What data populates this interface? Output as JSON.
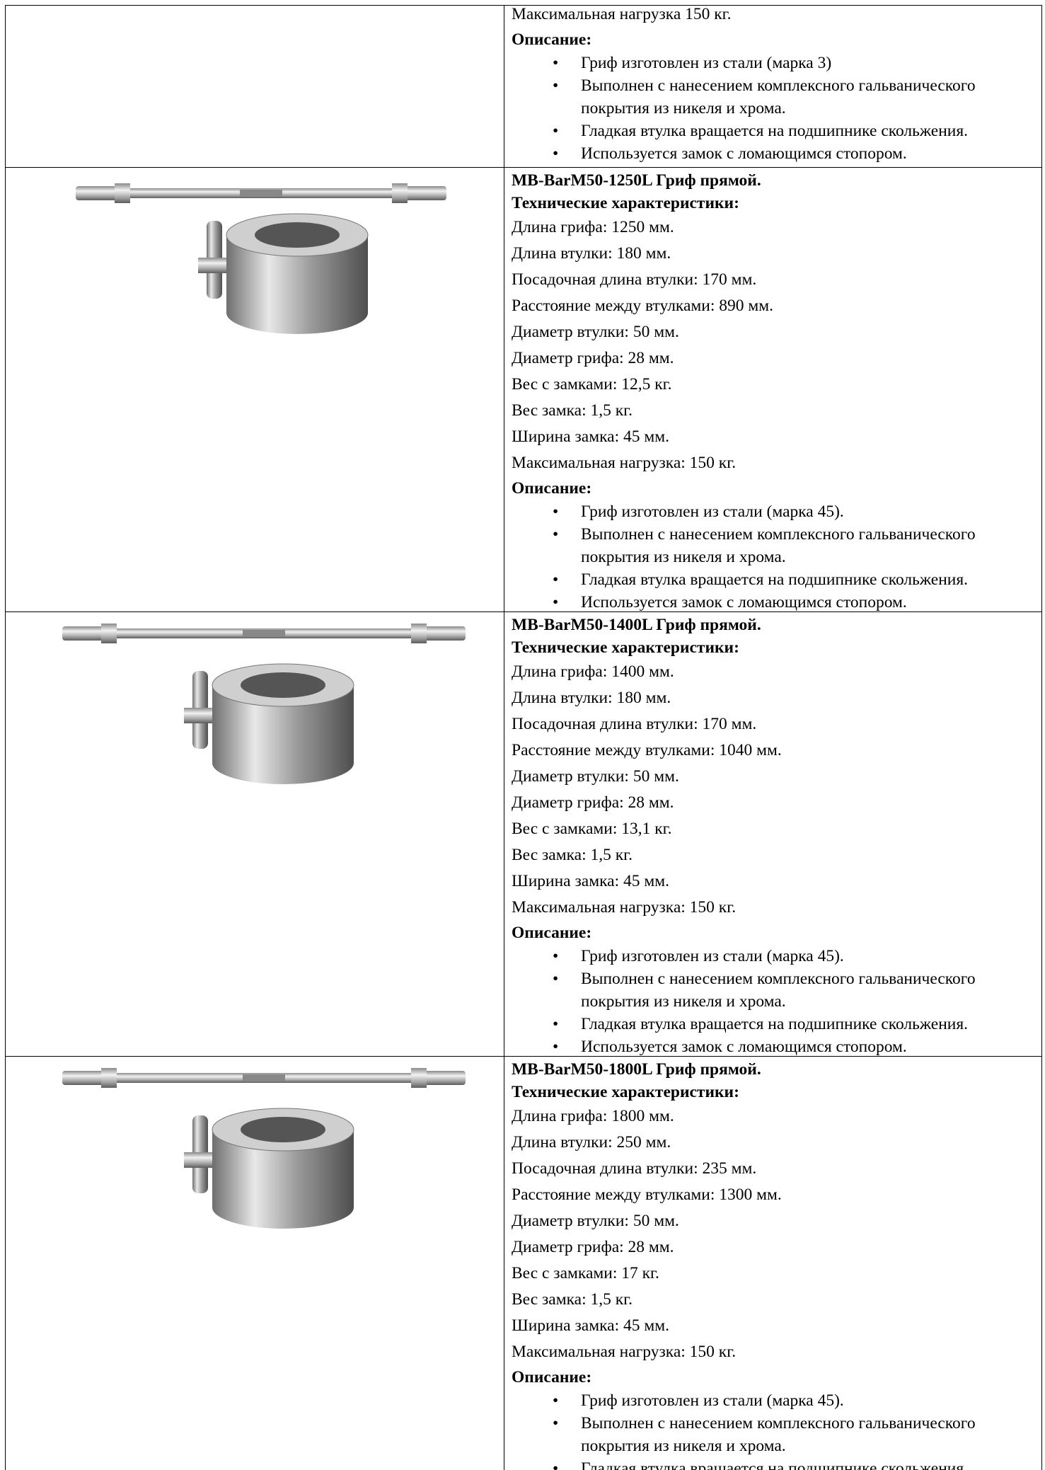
{
  "rows": [
    {
      "spec_lines": [
        "Максимальная нагрузка 150 кг."
      ],
      "description_heading": "Описание:",
      "bullets": [
        "Гриф изготовлен из стали (марка 3)",
        "Выполнен с нанесением комплексного гальванического покрытия из никеля и хрома.",
        "Гладкая  втулка вращается на подшипнике скольжения.",
        "Используется замок с ломающимся стопором."
      ]
    },
    {
      "title": "MB-BarM50-1250L Гриф прямой.",
      "subtitle": "Технические характеристики:",
      "spec_lines": [
        "Длина грифа: 1250 мм.",
        "Длина втулки: 180 мм.",
        "Посадочная длина втулки: 170 мм.",
        "Расстояние между втулками: 890 мм.",
        "Диаметр втулки: 50 мм.",
        "Диаметр грифа: 28 мм.",
        "Вес с замками: 12,5 кг.",
        "Вес замка: 1,5 кг.",
        "Ширина замка: 45 мм.",
        "Максимальная нагрузка: 150 кг."
      ],
      "description_heading": "Описание:",
      "bullets": [
        "Гриф изготовлен из стали (марка 45).",
        "Выполнен с нанесением комплексного гальванического покрытия из никеля и хрома.",
        "Гладкая  втулка вращается на подшипнике скольжения.",
        "Используется замок с ломающимся стопором."
      ]
    },
    {
      "title": "MB-BarM50-1400L Гриф прямой.",
      "subtitle": "Технические характеристики:",
      "spec_lines": [
        "Длина грифа: 1400 мм.",
        "Длина втулки: 180 мм.",
        "Посадочная длина втулки: 170 мм.",
        "Расстояние между втулками: 1040 мм.",
        "Диаметр втулки: 50 мм.",
        "Диаметр грифа: 28 мм.",
        "Вес с замками: 13,1 кг.",
        "Вес замка: 1,5 кг.",
        "Ширина замка: 45 мм.",
        "Максимальная нагрузка: 150 кг."
      ],
      "description_heading": "Описание:",
      "bullets": [
        "Гриф изготовлен из стали (марка 45).",
        "Выполнен с нанесением комплексного гальванического покрытия из никеля и хрома.",
        "Гладкая  втулка вращается на подшипнике скольжения.",
        "Используется замок с ломающимся стопором."
      ]
    },
    {
      "title": "MB-BarM50-1800L Гриф прямой.",
      "subtitle": "Технические характеристики:",
      "spec_lines": [
        "Длина грифа: 1800 мм.",
        "Длина втулки: 250 мм.",
        "Посадочная длина втулки: 235 мм.",
        "Расстояние между втулками: 1300 мм.",
        "Диаметр втулки: 50 мм.",
        "Диаметр грифа: 28 мм.",
        "Вес с замками: 17 кг.",
        "Вес замка: 1,5 кг.",
        "Ширина замка: 45 мм.",
        "Максимальная нагрузка: 150 кг."
      ],
      "description_heading": "Описание:",
      "bullets": [
        "Гриф изготовлен из стали (марка 45).",
        "Выполнен с нанесением комплексного гальванического покрытия из никеля и хрома.",
        "Гладкая  втулка вращается на подшипнике скольжения."
      ]
    }
  ]
}
